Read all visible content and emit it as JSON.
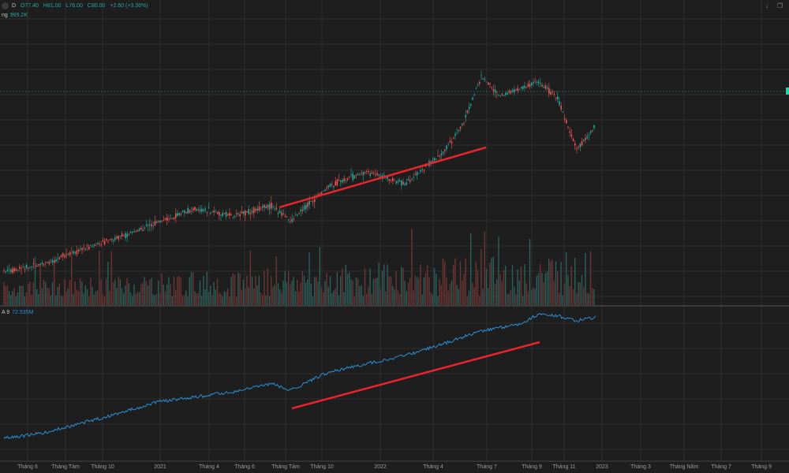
{
  "header": {
    "symbol": "D",
    "open": "O77.40",
    "high": "H81.00",
    "low": "L76.00",
    "close": "C80.00",
    "change": "+2.60 (+3.36%)"
  },
  "volume": {
    "label": "ng",
    "value": "969.2K"
  },
  "indicator": {
    "label": "A 9",
    "value": "72.535M"
  },
  "icons": {
    "down": "arrow-down-icon",
    "window": "restore-window-icon"
  },
  "colors": {
    "up": "#26a69a",
    "down": "#ef5350",
    "obv": "#2a8fd6",
    "trend": "#e8242c",
    "grid": "#2e2e2e",
    "marker": "#26d0a8"
  },
  "chart_data": {
    "type": "line",
    "x_ticks": [
      "Tháng 6",
      "Tháng Tám",
      "Tháng 10",
      "2021",
      "Tháng 4",
      "Tháng 6",
      "Tháng Tám",
      "Tháng 10",
      "2022",
      "Tháng 4",
      "Tháng 7",
      "Tháng 9",
      "Tháng 11",
      "2023",
      "Tháng 3",
      "Tháng Năm",
      "Tháng 7",
      "Tháng 9"
    ],
    "price_series": {
      "x": [
        "2020-05",
        "2020-07",
        "2020-09",
        "2020-11",
        "2021-01",
        "2021-03",
        "2021-05",
        "2021-07",
        "2021-08",
        "2021-10",
        "2021-12",
        "2022-02",
        "2022-04",
        "2022-05",
        "2022-06",
        "2022-07",
        "2022-08",
        "2022-09",
        "2022-10",
        "2022-11",
        "2022-12"
      ],
      "values": [
        20,
        23,
        29,
        34,
        40,
        46,
        43,
        47,
        41,
        55,
        61,
        56,
        69,
        80,
        100,
        92,
        95,
        98,
        91,
        70,
        80
      ]
    },
    "volume_series": {
      "description_values": [
        0.3,
        0.35,
        0.4,
        0.45,
        0.5,
        0.55,
        0.6,
        0.7,
        0.8,
        0.9,
        1.0,
        0.85,
        0.8,
        0.75,
        0.7,
        0.6
      ]
    },
    "obv_series": {
      "name": "",
      "x": [
        "2020-05",
        "2020-07",
        "2020-09",
        "2020-11",
        "2021-01",
        "2021-03",
        "2021-05",
        "2021-07",
        "2021-08",
        "2021-10",
        "2021-12",
        "2022-02",
        "2022-04",
        "2022-06",
        "2022-08",
        "2022-09",
        "2022-10",
        "2022-11",
        "2022-12"
      ],
      "values": [
        5,
        8,
        14,
        20,
        27,
        30,
        33,
        38,
        34,
        45,
        50,
        55,
        62,
        70,
        74,
        80,
        79,
        76,
        78
      ]
    },
    "trendlines": [
      {
        "panel": "price",
        "from": [
          "2021-08",
          41
        ],
        "to": [
          "2022-07",
          62
        ]
      },
      {
        "panel": "obv",
        "from": [
          "2021-08",
          36
        ],
        "to": [
          "2022-10",
          70
        ]
      }
    ],
    "grid": true
  }
}
